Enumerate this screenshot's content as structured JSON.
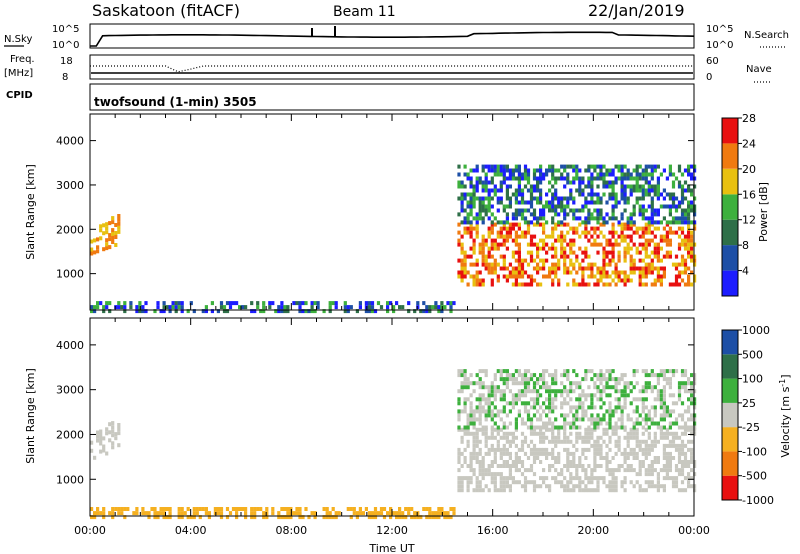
{
  "header": {
    "title": "Saskatoon (fitACF)",
    "beam": "Beam 11",
    "date": "22/Jan/2019"
  },
  "noise_panel": {
    "left_label": "N.Sky",
    "right_label": "N.Search",
    "left_ticks": [
      "10^5",
      "10^0"
    ],
    "right_ticks": [
      "10^5",
      "10^0"
    ]
  },
  "freq_panel": {
    "left_label_1": "Freq.",
    "left_label_2": "[MHz]",
    "right_label": "Nave",
    "left_ticks": [
      "18",
      "8"
    ],
    "right_ticks": [
      "60",
      "0"
    ]
  },
  "cpid": {
    "label": "CPID",
    "text": "twofsound (1-min) 3505"
  },
  "colors": {
    "power_scale": [
      "#1c1cff",
      "#1d4fa6",
      "#2e6f48",
      "#3db03d",
      "#e8c010",
      "#f07a10",
      "#e81010"
    ],
    "velocity_scale": [
      "#e81010",
      "#f07a10",
      "#f5b020",
      "#c8c8c0",
      "#3db03d",
      "#2e6f48",
      "#1d4fa6"
    ]
  },
  "chart_data": [
    {
      "type": "heatmap",
      "panel": "power",
      "ylabel": "Slant Range [km]",
      "ylim": [
        180,
        4600
      ],
      "yticks": [
        "1000",
        "2000",
        "3000",
        "4000"
      ],
      "xlim": [
        "00:00",
        "24:00"
      ],
      "colorbar_label": "Power [dB]",
      "colorbar_ticks": [
        "4",
        "8",
        "12",
        "16",
        "20",
        "24",
        "28"
      ],
      "series": [
        {
          "x_start": 0.0,
          "x_end": 1.1,
          "range_low": 1500,
          "range_high": 2500,
          "dominant": "orange"
        },
        {
          "x_start": 0.0,
          "x_end": 14.5,
          "range_low": 200,
          "range_high": 450,
          "dominant": "blue/green"
        },
        {
          "x_start": 14.6,
          "x_end": 24.0,
          "range_low": 800,
          "range_high": 2200,
          "dominant": "red/orange"
        },
        {
          "x_start": 14.6,
          "x_end": 24.0,
          "range_low": 2200,
          "range_high": 3500,
          "dominant": "blue"
        }
      ]
    },
    {
      "type": "heatmap",
      "panel": "velocity",
      "ylabel": "Slant Range [km]",
      "xlabel": "Time UT",
      "ylim": [
        180,
        4600
      ],
      "yticks": [
        "1000",
        "2000",
        "3000",
        "4000"
      ],
      "xticks": [
        "00:00",
        "04:00",
        "08:00",
        "12:00",
        "16:00",
        "20:00",
        "00:00"
      ],
      "colorbar_label": "Velocity [m s",
      "colorbar_label_sup": "-1",
      "colorbar_label_end": "]",
      "colorbar_ticks": [
        "-1000",
        "-500",
        "-100",
        "-25",
        "25",
        "100",
        "500",
        "1000"
      ],
      "series": [
        {
          "x_start": 0.0,
          "x_end": 1.1,
          "range_low": 1500,
          "range_high": 2500,
          "dominant": "grey"
        },
        {
          "x_start": 0.0,
          "x_end": 14.5,
          "range_low": 200,
          "range_high": 450,
          "dominant": "orange"
        },
        {
          "x_start": 14.6,
          "x_end": 24.0,
          "range_low": 800,
          "range_high": 2200,
          "dominant": "grey"
        },
        {
          "x_start": 14.6,
          "x_end": 24.0,
          "range_low": 2200,
          "range_high": 3500,
          "dominant": "grey/green"
        }
      ]
    }
  ]
}
